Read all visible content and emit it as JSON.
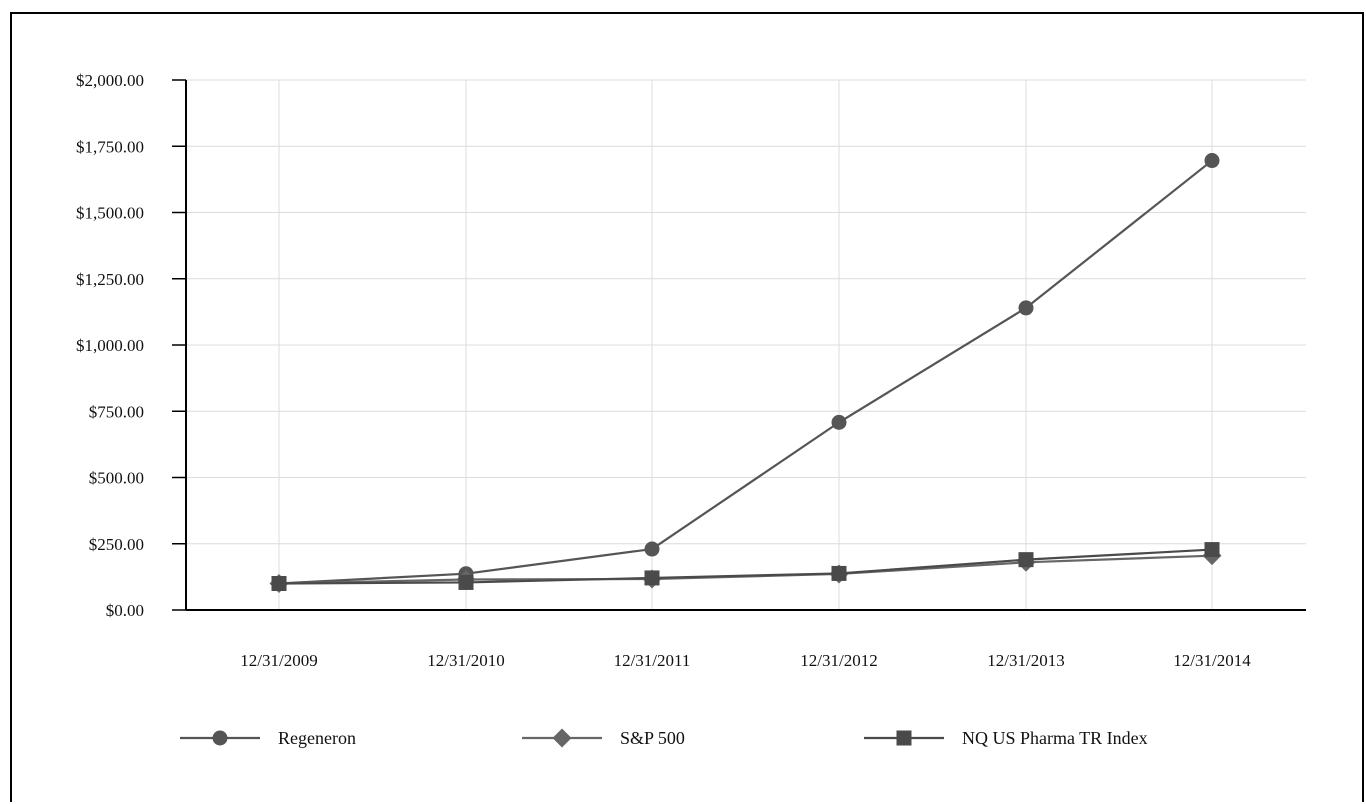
{
  "chart_data": {
    "type": "line",
    "title": "",
    "xlabel": "",
    "ylabel": "",
    "categories": [
      "12/31/2009",
      "12/31/2010",
      "12/31/2011",
      "12/31/2012",
      "12/31/2013",
      "12/31/2014"
    ],
    "ylim": [
      0,
      2000
    ],
    "yticks": [
      0,
      250,
      500,
      750,
      1000,
      1250,
      1500,
      1750,
      2000
    ],
    "ytick_labels": [
      "$0.00",
      "$250.00",
      "$500.00",
      "$750.00",
      "$1,000.00",
      "$1,250.00",
      "$1,500.00",
      "$1,750.00",
      "$2,000.00"
    ],
    "grid": true,
    "legend_position": "bottom",
    "series": [
      {
        "name": "Regeneron",
        "marker": "circle",
        "color": "#555555",
        "values": [
          100,
          137,
          230,
          708,
          1140,
          1696
        ]
      },
      {
        "name": "S&P 500",
        "marker": "diamond",
        "color": "#666666",
        "values": [
          100,
          115,
          117,
          136,
          180,
          205
        ]
      },
      {
        "name": "NQ US Pharma TR Index",
        "marker": "square",
        "color": "#4a4a4a",
        "values": [
          100,
          104,
          121,
          138,
          190,
          228
        ]
      }
    ]
  }
}
